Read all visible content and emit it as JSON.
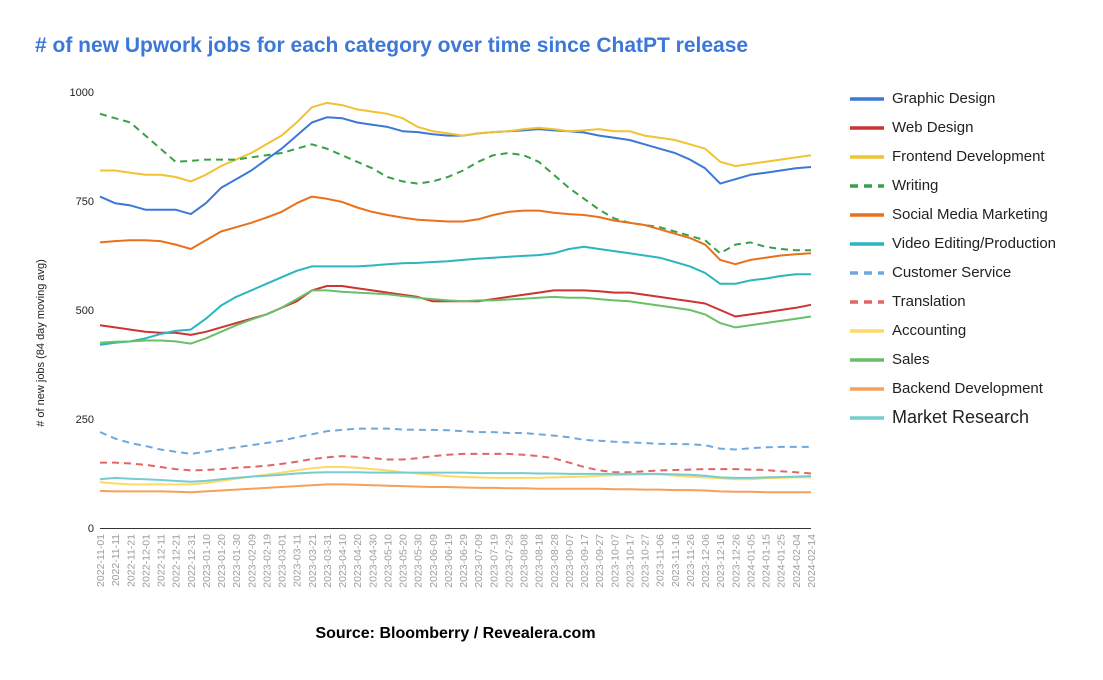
{
  "page": {
    "source": "Source: Bloomberry / Revealera.com"
  },
  "chart_data": {
    "type": "line",
    "title": "# of new Upwork jobs for each category over time since ChatPT release",
    "xlabel": "",
    "ylabel": "# of new jobs (84 day moving avg)",
    "ylim": [
      0,
      1000
    ],
    "yticks": [
      "0",
      "250",
      "500",
      "750",
      "1000"
    ],
    "grid": false,
    "legend_position": "right",
    "x": [
      "2022-11-01",
      "2022-11-11",
      "2022-11-21",
      "2022-12-01",
      "2022-12-11",
      "2022-12-21",
      "2022-12-31",
      "2023-01-10",
      "2023-01-20",
      "2023-01-30",
      "2023-02-09",
      "2023-02-19",
      "2023-03-01",
      "2023-03-11",
      "2023-03-21",
      "2023-03-31",
      "2023-04-10",
      "2023-04-20",
      "2023-04-30",
      "2023-05-10",
      "2023-05-20",
      "2023-05-30",
      "2023-06-09",
      "2023-06-19",
      "2023-06-29",
      "2023-07-09",
      "2023-07-19",
      "2023-07-29",
      "2023-08-08",
      "2023-08-18",
      "2023-08-28",
      "2023-09-07",
      "2023-09-17",
      "2023-09-27",
      "2023-10-07",
      "2023-10-17",
      "2023-10-27",
      "2023-11-06",
      "2023-11-16",
      "2023-11-26",
      "2023-12-06",
      "2023-12-16",
      "2023-12-26",
      "2024-01-05",
      "2024-01-15",
      "2024-01-25",
      "2024-02-04",
      "2024-02-14"
    ],
    "series": [
      {
        "name": "Graphic Design",
        "color": "#3c78d8",
        "dash": false,
        "values": [
          760,
          745,
          740,
          730,
          730,
          730,
          720,
          745,
          780,
          800,
          820,
          845,
          870,
          900,
          930,
          942,
          940,
          930,
          925,
          920,
          910,
          908,
          903,
          900,
          900,
          905,
          908,
          910,
          912,
          915,
          912,
          910,
          907,
          900,
          895,
          890,
          880,
          870,
          860,
          845,
          825,
          790,
          800,
          810,
          815,
          820,
          825,
          828
        ]
      },
      {
        "name": "Web Design",
        "color": "#cc3333",
        "dash": false,
        "values": [
          465,
          460,
          455,
          450,
          448,
          448,
          443,
          450,
          460,
          470,
          480,
          490,
          505,
          520,
          545,
          555,
          555,
          550,
          545,
          540,
          535,
          530,
          520,
          520,
          520,
          520,
          525,
          530,
          535,
          540,
          545,
          545,
          545,
          543,
          540,
          540,
          535,
          530,
          525,
          520,
          515,
          500,
          485,
          490,
          495,
          500,
          505,
          512
        ]
      },
      {
        "name": "Frontend Development",
        "color": "#f1c232",
        "dash": false,
        "values": [
          820,
          820,
          815,
          810,
          810,
          805,
          795,
          810,
          830,
          845,
          860,
          880,
          900,
          930,
          965,
          975,
          970,
          960,
          955,
          950,
          940,
          920,
          910,
          905,
          900,
          905,
          908,
          910,
          915,
          918,
          915,
          910,
          912,
          915,
          910,
          910,
          900,
          895,
          890,
          880,
          870,
          840,
          830,
          835,
          840,
          845,
          850,
          855
        ]
      },
      {
        "name": "Writing",
        "color": "#38a048",
        "dash": true,
        "values": [
          950,
          940,
          930,
          900,
          870,
          840,
          842,
          845,
          845,
          845,
          850,
          855,
          860,
          870,
          880,
          870,
          855,
          840,
          825,
          805,
          795,
          790,
          795,
          805,
          820,
          840,
          855,
          860,
          855,
          840,
          810,
          780,
          755,
          730,
          710,
          700,
          695,
          690,
          680,
          670,
          660,
          630,
          650,
          655,
          645,
          640,
          637,
          637
        ]
      },
      {
        "name": "Social Media Marketing",
        "color": "#e8711c",
        "dash": false,
        "values": [
          655,
          658,
          660,
          660,
          658,
          650,
          640,
          660,
          680,
          690,
          700,
          712,
          725,
          745,
          760,
          755,
          748,
          735,
          725,
          718,
          712,
          707,
          705,
          703,
          703,
          708,
          718,
          725,
          728,
          728,
          723,
          720,
          718,
          713,
          705,
          700,
          695,
          685,
          675,
          665,
          650,
          615,
          605,
          615,
          620,
          625,
          628,
          630
        ]
      },
      {
        "name": "Video Editing/Production",
        "color": "#2bb6bf",
        "dash": false,
        "values": [
          420,
          425,
          428,
          435,
          445,
          452,
          455,
          480,
          510,
          530,
          545,
          560,
          575,
          590,
          600,
          600,
          600,
          600,
          602,
          605,
          607,
          608,
          610,
          612,
          615,
          618,
          620,
          622,
          624,
          626,
          630,
          640,
          645,
          640,
          635,
          630,
          625,
          620,
          610,
          600,
          585,
          560,
          560,
          568,
          572,
          578,
          582,
          582
        ]
      },
      {
        "name": "Customer Service",
        "color": "#6fa8dc",
        "dash": true,
        "values": [
          220,
          205,
          195,
          188,
          180,
          175,
          170,
          175,
          180,
          185,
          190,
          195,
          200,
          208,
          215,
          222,
          225,
          228,
          228,
          228,
          226,
          225,
          225,
          224,
          222,
          220,
          220,
          218,
          218,
          215,
          212,
          208,
          202,
          200,
          198,
          196,
          195,
          193,
          193,
          192,
          190,
          182,
          180,
          183,
          185,
          186,
          186,
          186
        ]
      },
      {
        "name": "Translation",
        "color": "#e06666",
        "dash": true,
        "values": [
          150,
          150,
          148,
          145,
          140,
          135,
          132,
          133,
          135,
          138,
          140,
          143,
          147,
          152,
          158,
          162,
          165,
          163,
          160,
          157,
          157,
          160,
          165,
          168,
          170,
          170,
          170,
          170,
          168,
          165,
          160,
          150,
          140,
          132,
          128,
          128,
          130,
          132,
          133,
          134,
          135,
          135,
          135,
          134,
          133,
          130,
          128,
          125
        ]
      },
      {
        "name": "Accounting",
        "color": "#ffd966",
        "dash": false,
        "values": [
          105,
          102,
          100,
          100,
          100,
          100,
          100,
          103,
          108,
          113,
          118,
          122,
          127,
          132,
          137,
          140,
          140,
          138,
          135,
          132,
          128,
          125,
          122,
          119,
          117,
          116,
          115,
          115,
          115,
          115,
          116,
          117,
          118,
          120,
          121,
          122,
          123,
          123,
          120,
          118,
          116,
          114,
          112,
          112,
          114,
          115,
          116,
          116
        ]
      },
      {
        "name": "Sales",
        "color": "#6abf69",
        "dash": false,
        "values": [
          425,
          427,
          428,
          430,
          430,
          428,
          423,
          435,
          450,
          465,
          478,
          490,
          505,
          525,
          545,
          545,
          542,
          540,
          538,
          536,
          532,
          528,
          525,
          522,
          520,
          522,
          522,
          524,
          526,
          528,
          530,
          528,
          528,
          525,
          522,
          520,
          515,
          510,
          505,
          500,
          490,
          470,
          460,
          465,
          470,
          475,
          480,
          485
        ]
      },
      {
        "name": "Backend Development",
        "color": "#f6a05b",
        "dash": false,
        "values": [
          85,
          84,
          84,
          84,
          84,
          83,
          82,
          84,
          86,
          88,
          90,
          92,
          94,
          96,
          98,
          100,
          100,
          99,
          98,
          97,
          96,
          95,
          94,
          94,
          93,
          92,
          92,
          91,
          91,
          90,
          90,
          90,
          90,
          90,
          89,
          89,
          88,
          88,
          87,
          87,
          86,
          84,
          83,
          83,
          82,
          82,
          82,
          82
        ]
      },
      {
        "name": "Market Research",
        "color": "#76cdd1",
        "dash": false,
        "values": [
          112,
          115,
          113,
          112,
          110,
          108,
          106,
          108,
          112,
          115,
          118,
          120,
          122,
          125,
          127,
          128,
          128,
          128,
          127,
          127,
          127,
          127,
          127,
          127,
          127,
          126,
          126,
          126,
          126,
          125,
          125,
          124,
          124,
          124,
          124,
          124,
          124,
          124,
          123,
          122,
          120,
          116,
          115,
          115,
          116,
          117,
          118,
          119
        ]
      }
    ]
  }
}
